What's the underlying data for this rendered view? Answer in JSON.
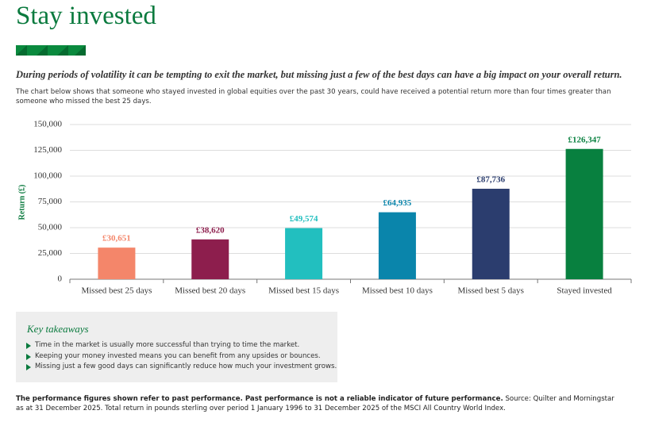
{
  "header": {
    "title": "Stay invested",
    "subtitle": "During periods of volatility it can be tempting to exit the market, but missing just a few of the best days can have a big impact on your overall return.",
    "description": "The chart below shows that someone who stayed invested in global equities over the past 30 years, could have received a potential return more than four times greater than someone who missed the best 25 days."
  },
  "chart_data": {
    "type": "bar",
    "ylabel": "Return (£)",
    "categories": [
      "Missed best 25 days",
      "Missed best 20 days",
      "Missed best 15 days",
      "Missed best 10 days",
      "Missed best 5 days",
      "Stayed invested"
    ],
    "values": [
      30651,
      38620,
      49574,
      64935,
      87736,
      126347
    ],
    "value_labels": [
      "£30,651",
      "£38,620",
      "£49,574",
      "£64,935",
      "£87,736",
      "£126,347"
    ],
    "colors": [
      "#f4866a",
      "#8d1e4d",
      "#22bfbf",
      "#0a85ab",
      "#2b3d6e",
      "#08803f"
    ],
    "ylim": [
      0,
      150000
    ],
    "yticks": [
      0,
      {
        "value": 25000,
        "label": "25,000"
      },
      {
        "value": 50000,
        "label": "50,000"
      },
      {
        "value": 75000,
        "label": "75,000"
      },
      {
        "value": 100000,
        "label": "100,000"
      },
      {
        "value": 125000,
        "label": "125,000"
      },
      {
        "value": 150000,
        "label": "150,000"
      }
    ],
    "grid": true
  },
  "takeaways": {
    "title": "Key takeaways",
    "items": [
      "Time in the market is usually more successful than trying to time the market.",
      "Keeping your money invested means you can benefit from any upsides or bounces.",
      "Missing just a few good days can significantly reduce how much your investment grows."
    ]
  },
  "footer": {
    "bold": "The performance figures shown refer to past performance. Past performance is not a reliable indicator of future performance.",
    "text": "Source: Quilter and Morningstar as at 31 December 2025. Total return in pounds sterling over period 1 January 1996 to 31 December 2025 of the MSCI All Country World Index."
  }
}
